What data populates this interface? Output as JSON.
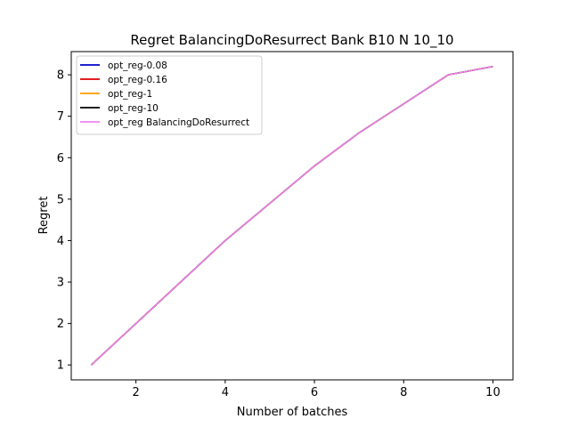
{
  "chart_data": {
    "type": "line",
    "title": "Regret BalancingDoResurrect Bank B10 N 10_10",
    "xlabel": "Number of batches",
    "ylabel": "Regret",
    "xlim": [
      0.55,
      10.45
    ],
    "ylim": [
      0.64,
      8.56
    ],
    "xticks": [
      2,
      4,
      6,
      8,
      10
    ],
    "yticks": [
      1,
      2,
      3,
      4,
      5,
      6,
      7,
      8
    ],
    "grid": false,
    "legend_position": "top-left",
    "x": [
      1,
      2,
      3,
      4,
      5,
      6,
      7,
      8,
      9,
      10
    ],
    "series": [
      {
        "name": "opt_reg-0.08",
        "color": "#0000cc",
        "values": [
          1.0,
          2.0,
          3.0,
          4.0,
          4.9,
          5.8,
          6.6,
          7.3,
          8.0,
          8.2
        ]
      },
      {
        "name": "opt_reg-0.16",
        "color": "#dd0000",
        "values": [
          1.0,
          2.0,
          3.0,
          4.0,
          4.9,
          5.8,
          6.6,
          7.3,
          8.0,
          8.2
        ]
      },
      {
        "name": "opt_reg-1",
        "color": "#ff9900",
        "values": [
          1.0,
          2.0,
          3.0,
          4.0,
          4.9,
          5.8,
          6.6,
          7.3,
          8.0,
          8.2
        ]
      },
      {
        "name": "opt_reg-10",
        "color": "#000000",
        "values": [
          1.0,
          2.0,
          3.0,
          4.0,
          4.9,
          5.8,
          6.6,
          7.3,
          8.0,
          8.2
        ]
      },
      {
        "name": "opt_reg BalancingDoResurrect",
        "color": "#ee82ee",
        "values": [
          1.0,
          2.0,
          3.0,
          4.0,
          4.9,
          5.8,
          6.6,
          7.3,
          8.0,
          8.2
        ]
      }
    ]
  }
}
